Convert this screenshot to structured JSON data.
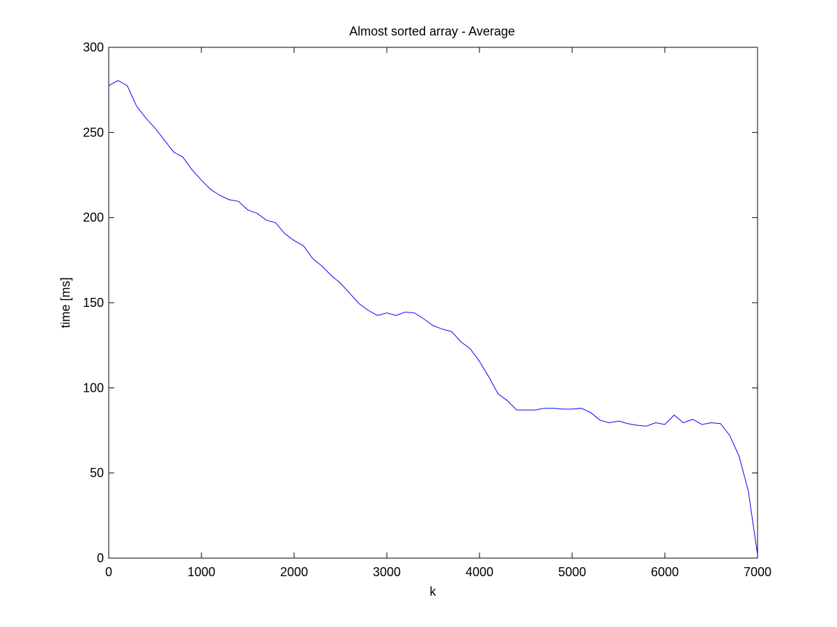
{
  "chart_data": {
    "type": "line",
    "title": "Almost sorted array - Average",
    "xlabel": "k",
    "ylabel": "time [ms]",
    "xlim": [
      0,
      7000
    ],
    "ylim": [
      0,
      300
    ],
    "xticks": [
      0,
      1000,
      2000,
      3000,
      4000,
      5000,
      6000,
      7000
    ],
    "yticks": [
      0,
      50,
      100,
      150,
      200,
      250,
      300
    ],
    "xtick_labels": [
      "0",
      "1000",
      "2000",
      "3000",
      "4000",
      "5000",
      "6000",
      "7000"
    ],
    "ytick_labels": [
      "0",
      "50",
      "100",
      "150",
      "200",
      "250",
      "300"
    ],
    "grid": false,
    "series": [
      {
        "color": "#0000ff",
        "x": [
          0,
          100,
          200,
          300,
          400,
          500,
          600,
          700,
          800,
          900,
          1000,
          1100,
          1200,
          1300,
          1400,
          1500,
          1600,
          1700,
          1800,
          1900,
          2000,
          2100,
          2200,
          2300,
          2400,
          2500,
          2600,
          2700,
          2800,
          2900,
          3000,
          3100,
          3200,
          3300,
          3400,
          3500,
          3600,
          3700,
          3800,
          3900,
          4000,
          4100,
          4200,
          4300,
          4400,
          4500,
          4600,
          4700,
          4800,
          4900,
          5000,
          5100,
          5200,
          5300,
          5400,
          5500,
          5600,
          5700,
          5800,
          5900,
          6000,
          6100,
          6200,
          6300,
          6400,
          6500,
          6600,
          6700,
          6800,
          6900,
          7000
        ],
        "y": [
          277.5,
          280.5,
          277.5,
          265.5,
          258.5,
          252.5,
          245.5,
          238.5,
          235.5,
          228.0,
          222.0,
          216.5,
          213.0,
          210.5,
          209.5,
          204.5,
          202.5,
          198.5,
          197.0,
          190.5,
          186.5,
          183.5,
          176.0,
          171.5,
          166.0,
          161.5,
          155.5,
          149.5,
          145.5,
          142.5,
          144.0,
          142.5,
          144.5,
          144.0,
          140.5,
          136.5,
          134.5,
          133.0,
          127.0,
          123.0,
          115.5,
          106.5,
          96.5,
          92.5,
          87.0,
          87.0,
          87.0,
          88.0,
          88.0,
          87.5,
          87.5,
          88.0,
          85.5,
          81.0,
          79.5,
          80.5,
          79.0,
          78.0,
          77.5,
          79.5,
          78.5,
          84.0,
          79.5,
          81.5,
          78.5,
          79.5,
          79.0,
          72.0,
          60.0,
          39.5,
          2.0
        ]
      }
    ]
  }
}
